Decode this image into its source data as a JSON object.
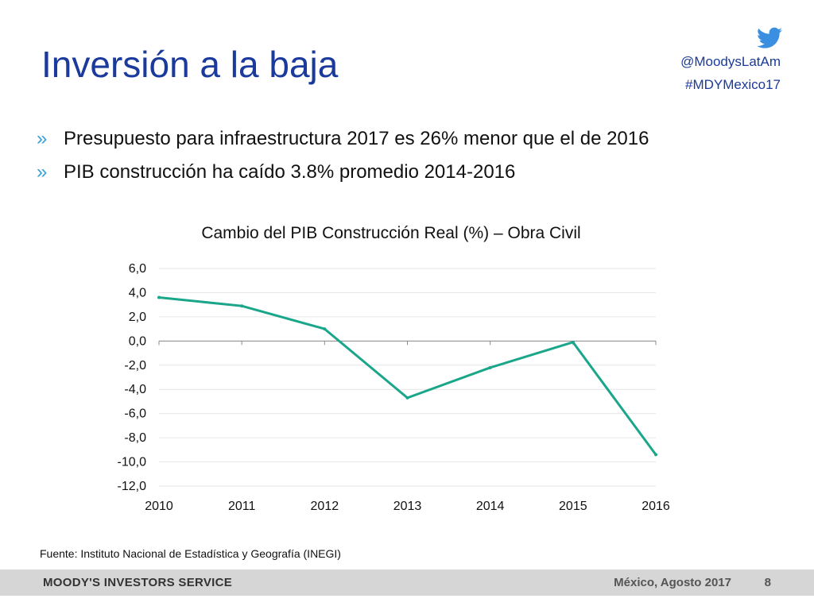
{
  "header": {
    "title": "Inversión a la baja",
    "twitter_handle": "@MoodysLatAm",
    "hashtag": "#MDYMexico17",
    "twitter_icon": "twitter-bird-icon",
    "accent_color": "#1a3a9c",
    "twitter_color": "#3a8fe0"
  },
  "bullets": {
    "marker": "»",
    "items": [
      "Presupuesto para infraestructura 2017 es 26% menor que el de 2016",
      "PIB construcción ha caído 3.8% promedio 2014-2016"
    ]
  },
  "chart_data": {
    "type": "line",
    "title": "Cambio del PIB Construcción Real (%) – Obra Civil",
    "xlabel": "",
    "ylabel": "",
    "x": [
      "2010",
      "2011",
      "2012",
      "2013",
      "2014",
      "2015",
      "2016"
    ],
    "values": [
      3.6,
      2.9,
      1.0,
      -4.7,
      -2.2,
      -0.1,
      -9.4
    ],
    "ylim": [
      -12,
      6
    ],
    "yticks": [
      "6,0",
      "4,0",
      "2,0",
      "0,0",
      "-2,0",
      "-4,0",
      "-6,0",
      "-8,0",
      "-10,0",
      "-12,0"
    ],
    "ytick_values": [
      6,
      4,
      2,
      0,
      -2,
      -4,
      -6,
      -8,
      -10,
      -12
    ],
    "grid": true,
    "legend": "none",
    "line_color": "#1aa68a"
  },
  "source": "Fuente: Instituto Nacional de Estadística y Geografía (INEGI)",
  "footer": {
    "brand": "MOODY'S INVESTORS SERVICE",
    "date": "México, Agosto 2017",
    "page": "8"
  }
}
